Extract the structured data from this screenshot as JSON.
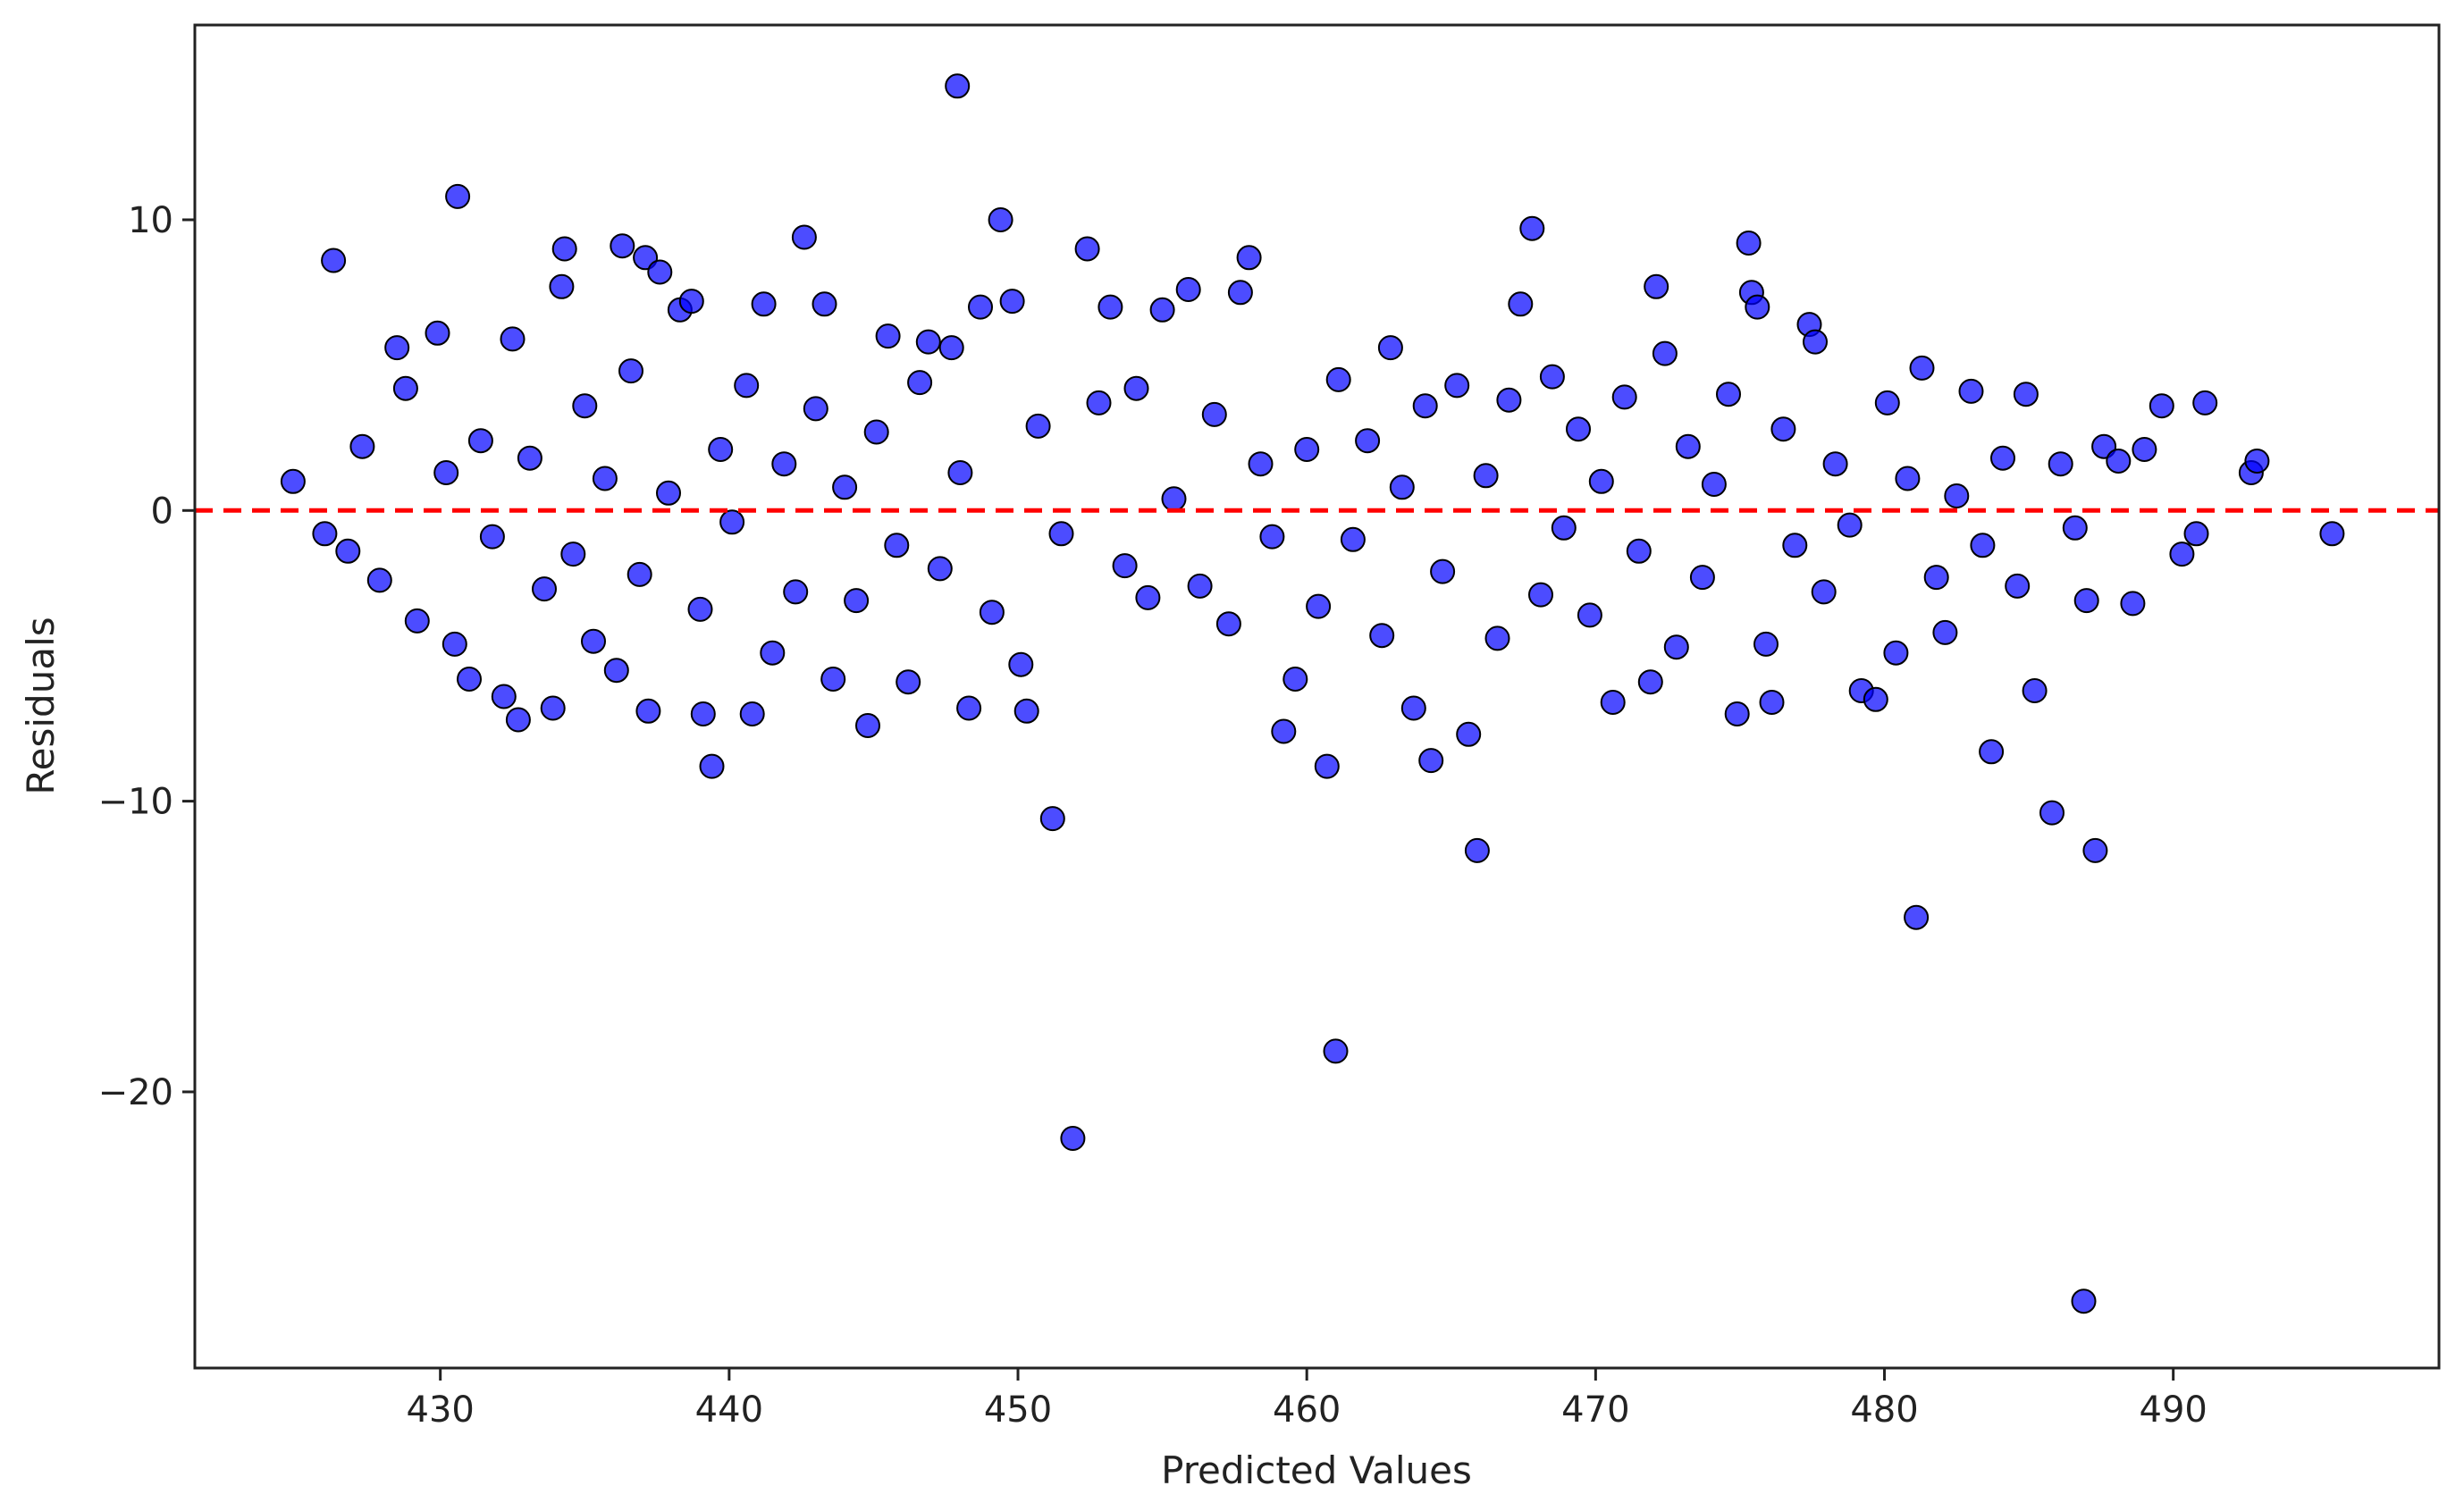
{
  "chart_data": {
    "type": "scatter",
    "title": "",
    "xlabel": "Predicted Values",
    "ylabel": "Residuals",
    "xlim": [
      421.5,
      499.2
    ],
    "ylim": [
      -29.5,
      16.7
    ],
    "xticks": [
      430,
      440,
      450,
      460,
      470,
      480,
      490
    ],
    "yticks": [
      10,
      0,
      -10,
      -20
    ],
    "xtick_labels": [
      "430",
      "440",
      "450",
      "460",
      "470",
      "480",
      "490"
    ],
    "ytick_labels": [
      "10",
      "0",
      "−10",
      "−20"
    ],
    "grid": false,
    "legend": "none",
    "colors": {
      "marker_fill": "#0000ff",
      "marker_edge": "#000000",
      "marker_alpha": 0.7,
      "reference_line": "#ff0000"
    },
    "reference_line": {
      "y": 0,
      "style": "dashed"
    },
    "series": [
      {
        "points": [
          [
            424.9,
            1.0
          ],
          [
            426.3,
            8.6
          ],
          [
            426.0,
            -0.8
          ],
          [
            426.8,
            -1.4
          ],
          [
            427.3,
            2.2
          ],
          [
            427.9,
            -2.4
          ],
          [
            428.5,
            5.6
          ],
          [
            428.8,
            4.2
          ],
          [
            429.2,
            -3.8
          ],
          [
            429.9,
            6.1
          ],
          [
            430.2,
            1.3
          ],
          [
            430.5,
            -4.6
          ],
          [
            430.6,
            10.8
          ],
          [
            431.0,
            -5.8
          ],
          [
            431.4,
            2.4
          ],
          [
            431.8,
            -0.9
          ],
          [
            432.2,
            -6.4
          ],
          [
            432.5,
            5.9
          ],
          [
            432.7,
            -7.2
          ],
          [
            433.1,
            1.8
          ],
          [
            433.6,
            -2.7
          ],
          [
            433.9,
            -6.8
          ],
          [
            434.2,
            7.7
          ],
          [
            434.3,
            9.0
          ],
          [
            434.6,
            -1.5
          ],
          [
            435.0,
            3.6
          ],
          [
            435.3,
            -4.5
          ],
          [
            435.7,
            1.1
          ],
          [
            436.1,
            -5.5
          ],
          [
            436.3,
            9.1
          ],
          [
            436.6,
            4.8
          ],
          [
            436.9,
            -2.2
          ],
          [
            437.1,
            8.7
          ],
          [
            437.2,
            -6.9
          ],
          [
            437.6,
            8.2
          ],
          [
            437.9,
            0.6
          ],
          [
            438.3,
            6.9
          ],
          [
            438.7,
            7.2
          ],
          [
            439.0,
            -3.4
          ],
          [
            439.1,
            -7.0
          ],
          [
            439.4,
            -8.8
          ],
          [
            439.7,
            2.1
          ],
          [
            440.1,
            -0.4
          ],
          [
            440.6,
            4.3
          ],
          [
            440.8,
            -7.0
          ],
          [
            441.2,
            7.1
          ],
          [
            441.5,
            -4.9
          ],
          [
            441.9,
            1.6
          ],
          [
            442.3,
            -2.8
          ],
          [
            442.6,
            9.4
          ],
          [
            443.0,
            3.5
          ],
          [
            443.3,
            7.1
          ],
          [
            443.6,
            -5.8
          ],
          [
            444.0,
            0.8
          ],
          [
            444.4,
            -3.1
          ],
          [
            444.8,
            -7.4
          ],
          [
            445.1,
            2.7
          ],
          [
            445.5,
            6.0
          ],
          [
            445.8,
            -1.2
          ],
          [
            446.2,
            -5.9
          ],
          [
            446.6,
            4.4
          ],
          [
            446.9,
            5.8
          ],
          [
            447.3,
            -2.0
          ],
          [
            447.7,
            5.6
          ],
          [
            447.9,
            14.6
          ],
          [
            448.0,
            1.3
          ],
          [
            448.3,
            -6.8
          ],
          [
            448.7,
            7.0
          ],
          [
            449.1,
            -3.5
          ],
          [
            449.4,
            10.0
          ],
          [
            449.8,
            7.2
          ],
          [
            450.1,
            -5.3
          ],
          [
            450.3,
            -6.9
          ],
          [
            450.7,
            2.9
          ],
          [
            451.2,
            -10.6
          ],
          [
            451.5,
            -0.8
          ],
          [
            451.9,
            -21.6
          ],
          [
            452.4,
            9.0
          ],
          [
            452.8,
            3.7
          ],
          [
            453.2,
            7.0
          ],
          [
            453.7,
            -1.9
          ],
          [
            454.1,
            4.2
          ],
          [
            454.5,
            -3.0
          ],
          [
            455.0,
            6.9
          ],
          [
            455.4,
            0.4
          ],
          [
            455.9,
            7.6
          ],
          [
            456.3,
            -2.6
          ],
          [
            456.8,
            3.3
          ],
          [
            457.3,
            -3.9
          ],
          [
            457.7,
            7.5
          ],
          [
            458.0,
            8.7
          ],
          [
            458.4,
            1.6
          ],
          [
            458.8,
            -0.9
          ],
          [
            459.2,
            -7.6
          ],
          [
            459.6,
            -5.8
          ],
          [
            460.0,
            2.1
          ],
          [
            460.4,
            -3.3
          ],
          [
            460.7,
            -8.8
          ],
          [
            461.0,
            -18.6
          ],
          [
            461.1,
            4.5
          ],
          [
            461.6,
            -1.0
          ],
          [
            462.1,
            2.4
          ],
          [
            462.6,
            -4.3
          ],
          [
            462.9,
            5.6
          ],
          [
            463.3,
            0.8
          ],
          [
            463.7,
            -6.8
          ],
          [
            464.1,
            3.6
          ],
          [
            464.3,
            -8.6
          ],
          [
            464.7,
            -2.1
          ],
          [
            465.2,
            4.3
          ],
          [
            465.6,
            -7.7
          ],
          [
            465.9,
            -11.7
          ],
          [
            466.2,
            1.2
          ],
          [
            466.6,
            -4.4
          ],
          [
            467.0,
            3.8
          ],
          [
            467.4,
            7.1
          ],
          [
            467.8,
            9.7
          ],
          [
            468.1,
            -2.9
          ],
          [
            468.5,
            4.6
          ],
          [
            468.9,
            -0.6
          ],
          [
            469.4,
            2.8
          ],
          [
            469.8,
            -3.6
          ],
          [
            470.2,
            1.0
          ],
          [
            470.6,
            -6.6
          ],
          [
            471.0,
            3.9
          ],
          [
            471.5,
            -1.4
          ],
          [
            471.9,
            -5.9
          ],
          [
            472.1,
            7.7
          ],
          [
            472.4,
            5.4
          ],
          [
            472.8,
            -4.7
          ],
          [
            473.2,
            2.2
          ],
          [
            473.7,
            -2.3
          ],
          [
            474.1,
            0.9
          ],
          [
            474.6,
            4.0
          ],
          [
            474.9,
            -7.0
          ],
          [
            475.3,
            9.2
          ],
          [
            475.4,
            7.5
          ],
          [
            475.6,
            7.0
          ],
          [
            475.9,
            -4.6
          ],
          [
            476.1,
            -6.6
          ],
          [
            476.5,
            2.8
          ],
          [
            476.9,
            -1.2
          ],
          [
            477.4,
            6.4
          ],
          [
            477.6,
            5.8
          ],
          [
            477.9,
            -2.8
          ],
          [
            478.3,
            1.6
          ],
          [
            478.8,
            -0.5
          ],
          [
            479.2,
            -6.2
          ],
          [
            479.7,
            -6.5
          ],
          [
            480.1,
            3.7
          ],
          [
            480.4,
            -4.9
          ],
          [
            480.8,
            1.1
          ],
          [
            481.1,
            -14.0
          ],
          [
            481.3,
            4.9
          ],
          [
            481.8,
            -2.3
          ],
          [
            482.1,
            -4.2
          ],
          [
            482.5,
            0.5
          ],
          [
            483.0,
            4.1
          ],
          [
            483.4,
            -1.2
          ],
          [
            483.7,
            -8.3
          ],
          [
            484.1,
            1.8
          ],
          [
            484.6,
            -2.6
          ],
          [
            484.9,
            4.0
          ],
          [
            485.2,
            -6.2
          ],
          [
            485.8,
            -10.4
          ],
          [
            486.1,
            1.6
          ],
          [
            486.6,
            -0.6
          ],
          [
            486.9,
            -27.2
          ],
          [
            487.0,
            -3.1
          ],
          [
            487.3,
            -11.7
          ],
          [
            487.6,
            2.2
          ],
          [
            488.1,
            1.7
          ],
          [
            488.6,
            -3.2
          ],
          [
            489.0,
            2.1
          ],
          [
            489.6,
            3.6
          ],
          [
            490.3,
            -1.5
          ],
          [
            490.8,
            -0.8
          ],
          [
            491.1,
            3.7
          ],
          [
            492.7,
            1.3
          ],
          [
            492.9,
            1.7
          ],
          [
            495.5,
            -0.8
          ]
        ]
      }
    ]
  }
}
